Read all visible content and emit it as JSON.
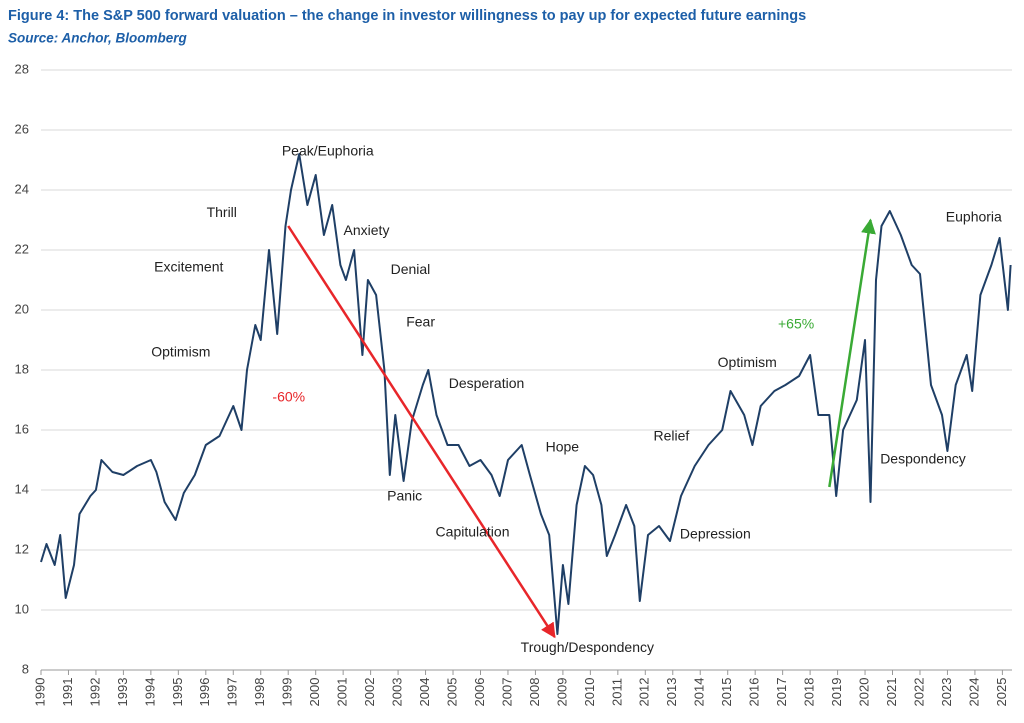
{
  "chart_data": {
    "type": "line",
    "title": "Figure 4: The S&P 500 forward valuation – the change in investor willingness to pay up for expected future earnings",
    "subtitle": "Source: Anchor, Bloomberg",
    "color": "#1f3f66",
    "x": [
      1990.0,
      1990.2,
      1990.5,
      1990.7,
      1990.9,
      1991.2,
      1991.4,
      1991.8,
      1992.0,
      1992.2,
      1992.6,
      1993.0,
      1993.5,
      1994.0,
      1994.2,
      1994.5,
      1994.9,
      1995.2,
      1995.6,
      1996.0,
      1996.5,
      1997.0,
      1997.3,
      1997.5,
      1997.8,
      1998.0,
      1998.3,
      1998.6,
      1998.9,
      1999.1,
      1999.4,
      1999.7,
      2000.0,
      2000.3,
      2000.6,
      2000.9,
      2001.1,
      2001.4,
      2001.7,
      2001.9,
      2002.2,
      2002.5,
      2002.7,
      2002.9,
      2003.2,
      2003.5,
      2003.9,
      2004.1,
      2004.4,
      2004.8,
      2005.2,
      2005.6,
      2006.0,
      2006.4,
      2006.7,
      2007.0,
      2007.5,
      2007.8,
      2008.2,
      2008.5,
      2008.8,
      2009.0,
      2009.2,
      2009.5,
      2009.8,
      2010.1,
      2010.4,
      2010.6,
      2010.9,
      2011.3,
      2011.6,
      2011.8,
      2012.1,
      2012.5,
      2012.9,
      2013.3,
      2013.8,
      2014.3,
      2014.8,
      2015.1,
      2015.6,
      2015.9,
      2016.2,
      2016.7,
      2017.1,
      2017.6,
      2018.0,
      2018.3,
      2018.7,
      2018.95,
      2019.2,
      2019.7,
      2020.0,
      2020.2,
      2020.4,
      2020.6,
      2020.9,
      2021.3,
      2021.7,
      2022.0,
      2022.4,
      2022.8,
      2023.0,
      2023.3,
      2023.7,
      2023.9,
      2024.2,
      2024.6,
      2024.9,
      2025.2,
      2025.3
    ],
    "values": [
      11.6,
      12.2,
      11.5,
      12.5,
      10.4,
      11.5,
      13.2,
      13.8,
      14.0,
      15.0,
      14.6,
      14.5,
      14.8,
      15.0,
      14.6,
      13.6,
      13.0,
      13.9,
      14.5,
      15.5,
      15.8,
      16.8,
      16.0,
      18.0,
      19.5,
      19.0,
      22.0,
      19.2,
      22.8,
      24.0,
      25.2,
      23.5,
      24.5,
      22.5,
      23.5,
      21.5,
      21.0,
      22.0,
      18.5,
      21.0,
      20.5,
      18.0,
      14.5,
      16.5,
      14.3,
      16.3,
      17.5,
      18.0,
      16.5,
      15.5,
      15.5,
      14.8,
      15.0,
      14.5,
      13.8,
      15.0,
      15.5,
      14.5,
      13.2,
      12.5,
      9.2,
      11.5,
      10.2,
      13.5,
      14.8,
      14.5,
      13.5,
      11.8,
      12.5,
      13.5,
      12.8,
      10.3,
      12.5,
      12.8,
      12.3,
      13.8,
      14.8,
      15.5,
      16.0,
      17.3,
      16.5,
      15.5,
      16.8,
      17.3,
      17.5,
      17.8,
      18.5,
      16.5,
      16.5,
      13.8,
      16.0,
      17.0,
      19.0,
      13.6,
      21.0,
      22.8,
      23.3,
      22.5,
      21.5,
      21.2,
      17.5,
      16.5,
      15.3,
      17.5,
      18.5,
      17.3,
      20.5,
      21.5,
      22.4,
      20.0,
      21.5
    ],
    "xlim": [
      1990,
      2025.35
    ],
    "xticks": [
      1990,
      1991,
      1992,
      1993,
      1994,
      1995,
      1996,
      1997,
      1998,
      1999,
      2000,
      2001,
      2002,
      2003,
      2004,
      2005,
      2006,
      2007,
      2008,
      2009,
      2010,
      2011,
      2012,
      2013,
      2014,
      2015,
      2016,
      2017,
      2018,
      2019,
      2020,
      2021,
      2022,
      2023,
      2024,
      2025
    ],
    "ylim": [
      8,
      28
    ],
    "yticks": [
      8,
      10,
      12,
      14,
      16,
      18,
      20,
      22,
      24,
      26,
      28
    ],
    "grid": true,
    "annotations": [
      {
        "text": "Thrill",
        "x": 1996.58,
        "y": 23.23
      },
      {
        "text": "Peak/Euphoria",
        "x": 2000.44,
        "y": 25.27
      },
      {
        "text": "Anxiety",
        "x": 2001.85,
        "y": 22.63
      },
      {
        "text": "Excitement",
        "x": 1995.38,
        "y": 21.4
      },
      {
        "text": "Denial",
        "x": 2003.45,
        "y": 21.33
      },
      {
        "text": "Fear",
        "x": 2003.82,
        "y": 19.57
      },
      {
        "text": "Optimism",
        "x": 1995.09,
        "y": 18.57
      },
      {
        "text": "-60%",
        "x": 1999.02,
        "y": 17.07,
        "color": "#e8262a"
      },
      {
        "text": "Desperation",
        "x": 2006.22,
        "y": 17.53
      },
      {
        "text": "Panic",
        "x": 2003.24,
        "y": 13.77
      },
      {
        "text": "Hope",
        "x": 2008.98,
        "y": 15.4
      },
      {
        "text": "Capitulation",
        "x": 2005.71,
        "y": 12.57
      },
      {
        "text": "Trough/Despondency",
        "x": 2009.89,
        "y": 8.73
      },
      {
        "text": "Relief",
        "x": 2012.95,
        "y": 15.77
      },
      {
        "text": "Depression",
        "x": 2014.55,
        "y": 12.5
      },
      {
        "text": "Optimism",
        "x": 2015.71,
        "y": 18.23
      },
      {
        "text": "+65%",
        "x": 2017.49,
        "y": 19.5,
        "color": "#3aaa35"
      },
      {
        "text": "Euphoria",
        "x": 2023.96,
        "y": 23.07
      },
      {
        "text": "Despondency",
        "x": 2022.11,
        "y": 15.0
      }
    ],
    "arrows": [
      {
        "from": [
          1999.0,
          22.8
        ],
        "to": [
          2008.7,
          9.1
        ],
        "color": "#e8262a"
      },
      {
        "from": [
          2018.7,
          14.1
        ],
        "to": [
          2020.2,
          23.0
        ],
        "color": "#3aaa35"
      }
    ]
  }
}
